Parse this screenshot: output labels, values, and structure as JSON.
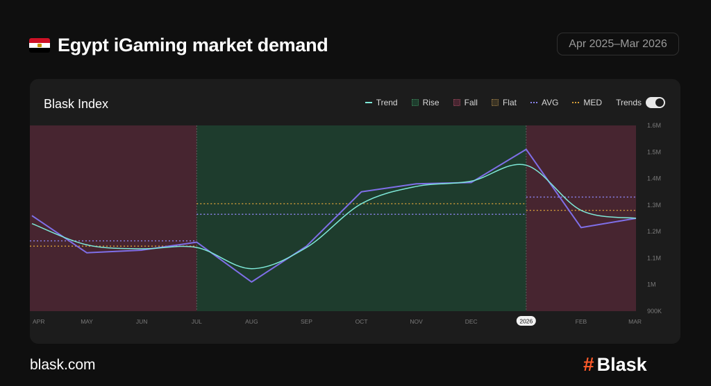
{
  "header": {
    "title": "Egypt iGaming market demand",
    "date_range": "Apr 2025–Mar 2026",
    "flag_icon": "egypt-flag-icon"
  },
  "card": {
    "title": "Blask Index",
    "legend": {
      "trend": "Trend",
      "rise": "Rise",
      "fall": "Fall",
      "flat": "Flat",
      "avg": "AVG",
      "med": "MED",
      "trends_toggle": "Trends"
    }
  },
  "footer": {
    "site": "blask.com",
    "brand": "Blask",
    "brand_icon": "hash-icon"
  },
  "colors": {
    "background": "#0f0f0f",
    "card": "#1c1c1c",
    "fall_region": "#472530",
    "rise_region": "#1e3c2d",
    "index_line": "#7f6fe8",
    "trend_line": "#7ee8d8",
    "avg_line": "#8b84ee",
    "med_line": "#d9a13a",
    "brand_accent": "#ff5a2a"
  },
  "chart_data": {
    "type": "line",
    "title": "Blask Index",
    "x_labels": [
      "APR",
      "MAY",
      "JUN",
      "JUL",
      "AUG",
      "SEP",
      "OCT",
      "NOV",
      "DEC",
      "2026",
      "FEB",
      "MAR"
    ],
    "highlighted_x_label": "2026",
    "y_ticks": [
      "900K",
      "1M",
      "1.1M",
      "1.2M",
      "1.3M",
      "1.4M",
      "1.5M",
      "1.6M"
    ],
    "y_tick_values": [
      900000,
      1000000,
      1100000,
      1200000,
      1300000,
      1400000,
      1500000,
      1600000
    ],
    "ylim": [
      900000,
      1600000
    ],
    "series": [
      {
        "name": "Blask Index",
        "color": "#7f6fe8",
        "values": [
          1260000,
          1120000,
          1130000,
          1160000,
          1010000,
          1145000,
          1350000,
          1380000,
          1385000,
          1510000,
          1215000,
          1250000
        ]
      },
      {
        "name": "Trend",
        "color": "#7ee8d8",
        "values": [
          1230000,
          1150000,
          1135000,
          1140000,
          1060000,
          1140000,
          1305000,
          1370000,
          1390000,
          1450000,
          1280000,
          1250000
        ]
      }
    ],
    "regions": [
      {
        "type": "Fall",
        "from": "APR",
        "to": "JUL"
      },
      {
        "type": "Rise",
        "from": "JUL",
        "to": "2026"
      },
      {
        "type": "Fall",
        "from": "2026",
        "to": "MAR"
      }
    ],
    "reference_lines": [
      {
        "type": "AVG",
        "from": "APR",
        "to": "JUL",
        "value": 1165000
      },
      {
        "type": "MED",
        "from": "APR",
        "to": "JUL",
        "value": 1145000
      },
      {
        "type": "AVG",
        "from": "JUL",
        "to": "2026",
        "value": 1265000
      },
      {
        "type": "MED",
        "from": "JUL",
        "to": "2026",
        "value": 1305000
      },
      {
        "type": "AVG",
        "from": "2026",
        "to": "MAR",
        "value": 1330000
      },
      {
        "type": "MED",
        "from": "2026",
        "to": "MAR",
        "value": 1280000
      }
    ]
  }
}
